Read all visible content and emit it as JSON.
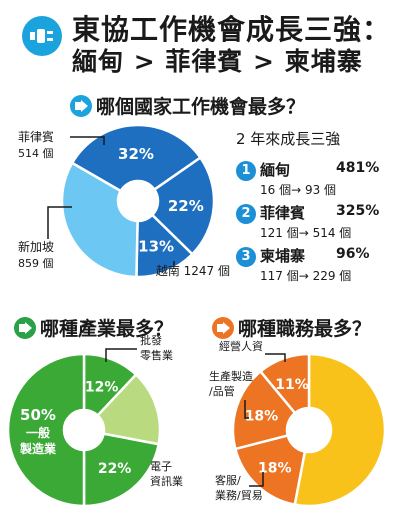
{
  "header": {
    "title_line1": "東協工作機會成長三強：",
    "title_line2": "緬甸 > 菲律賓 > 柬埔寨",
    "logo_icon": "plug-icon"
  },
  "growth": {
    "title": "2 年來成長三強",
    "items": [
      {
        "num": "1",
        "country": "緬甸",
        "pct": "481%",
        "detail": "16 個→ 93 個"
      },
      {
        "num": "2",
        "country": "菲律賓",
        "pct": "325%",
        "detail": "121 個→ 514 個"
      },
      {
        "num": "3",
        "country": "柬埔寨",
        "pct": "96%",
        "detail": "117 個→ 229 個"
      }
    ]
  },
  "colors": {
    "dark_blue": "#1e6fbf",
    "light_blue": "#6cc7f2",
    "green": "#3aa935",
    "light_green": "#b9da7f",
    "orange": "#ec7422",
    "yellow": "#f9c21b",
    "badge_blue": "#1aa3dc",
    "badge_green": "#2aa146",
    "badge_orange": "#ec7422"
  },
  "chart_data": [
    {
      "type": "pie",
      "title": "哪個國家工作機會最多？",
      "slices": [
        {
          "label": "越南",
          "value_label": "1247 個",
          "pct": 32,
          "pct_label": "32%",
          "color": "#1e6fbf"
        },
        {
          "label": "新加坡",
          "value_label": "859 個",
          "pct": 22,
          "pct_label": "22%",
          "color": "#1e6fbf"
        },
        {
          "label": "菲律賓",
          "value_label": "514 個",
          "pct": 13,
          "pct_label": "13%",
          "color": "#1e6fbf"
        },
        {
          "label": "",
          "pct": 33,
          "pct_label": "",
          "color": "#6cc7f2"
        }
      ]
    },
    {
      "type": "pie",
      "title": "哪種產業最多？",
      "slices": [
        {
          "label_lines": [
            "批發",
            "零售業"
          ],
          "pct": 12,
          "pct_label": "12%",
          "color": "#3aa935"
        },
        {
          "label_lines": [],
          "pct": 16,
          "pct_label": "",
          "color": "#b9da7f"
        },
        {
          "label_lines": [
            "電子",
            "資訊業"
          ],
          "pct": 22,
          "pct_label": "22%",
          "color": "#3aa935"
        },
        {
          "label_lines": [],
          "pct": 50,
          "pct_label": "50%",
          "inner_lines": [
            "一般",
            "製造業"
          ],
          "color": "#3aa935"
        }
      ]
    },
    {
      "type": "pie",
      "title": "哪種職務最多？",
      "slices": [
        {
          "label_lines": [],
          "pct": 53,
          "pct_label": "",
          "color": "#f9c21b"
        },
        {
          "label_lines": [
            "客服/",
            "業務/貿易"
          ],
          "pct": 18,
          "pct_label": "18%",
          "color": "#ec7422"
        },
        {
          "label_lines": [
            "生產製造",
            "/品管"
          ],
          "pct": 18,
          "pct_label": "18%",
          "color": "#ec7422"
        },
        {
          "label_lines": [
            "經營人資"
          ],
          "pct": 11,
          "pct_label": "11%",
          "color": "#ec7422"
        }
      ]
    }
  ]
}
